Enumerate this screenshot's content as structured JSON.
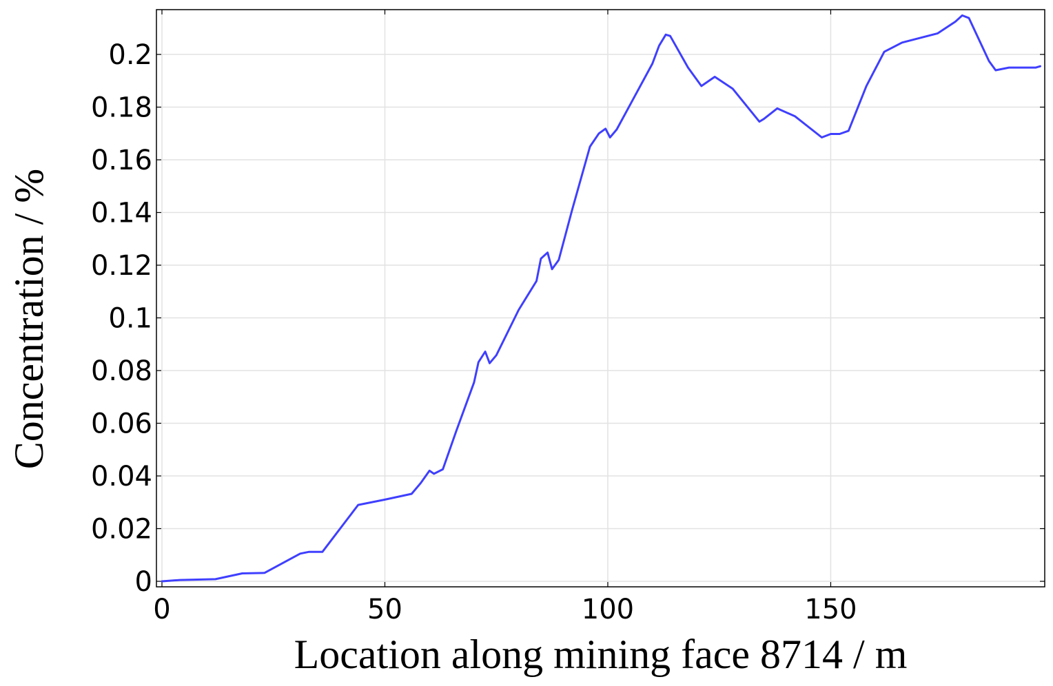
{
  "chart_data": {
    "type": "line",
    "title": "",
    "xlabel": "Location along mining face 8714 / m",
    "ylabel": "Concentration / %",
    "xlim": [
      0,
      198
    ],
    "ylim": [
      0,
      0.217
    ],
    "grid": true,
    "x_ticks": [
      0,
      50,
      100,
      150
    ],
    "x_tick_labels": [
      "0",
      "50",
      "100",
      "150"
    ],
    "y_ticks": [
      0,
      0.02,
      0.04,
      0.06,
      0.08,
      0.1,
      0.12,
      0.14,
      0.16,
      0.18,
      0.2
    ],
    "y_tick_labels": [
      "0",
      "0.02",
      "0.04",
      "0.06",
      "0.08",
      "0.1",
      "0.12",
      "0.14",
      "0.16",
      "0.18",
      "0.2"
    ],
    "line_color": "#3f3fff",
    "series": [
      {
        "x": [
          0,
          4,
          12,
          18,
          23,
          31,
          33,
          36,
          44,
          50,
          56,
          58,
          60,
          61,
          63,
          66,
          70,
          71,
          72.5,
          73.5,
          75,
          80,
          84,
          85,
          86.5,
          87.5,
          89,
          92,
          96,
          98,
          99.5,
          100.5,
          102,
          106,
          110,
          111.5,
          113,
          114,
          118,
          121,
          124,
          128,
          134,
          135,
          138,
          142,
          148,
          150,
          152,
          154,
          158,
          162,
          166,
          174,
          178,
          179.5,
          181,
          185.5,
          187,
          190,
          192,
          196,
          197
        ],
        "y": [
          0.0,
          0.0005,
          0.0008,
          0.003,
          0.0032,
          0.0105,
          0.0112,
          0.0112,
          0.029,
          0.031,
          0.0332,
          0.0372,
          0.042,
          0.0408,
          0.0425,
          0.057,
          0.0755,
          0.0832,
          0.0872,
          0.0828,
          0.0858,
          0.103,
          0.114,
          0.1225,
          0.1248,
          0.1185,
          0.122,
          0.141,
          0.165,
          0.17,
          0.1718,
          0.1685,
          0.1715,
          0.184,
          0.1965,
          0.2033,
          0.2075,
          0.207,
          0.195,
          0.188,
          0.1915,
          0.187,
          0.1745,
          0.1755,
          0.1795,
          0.1765,
          0.1685,
          0.1698,
          0.1698,
          0.171,
          0.188,
          0.201,
          0.2045,
          0.208,
          0.2125,
          0.2148,
          0.2138,
          0.1975,
          0.194,
          0.195,
          0.195,
          0.195,
          0.1955
        ]
      }
    ]
  }
}
